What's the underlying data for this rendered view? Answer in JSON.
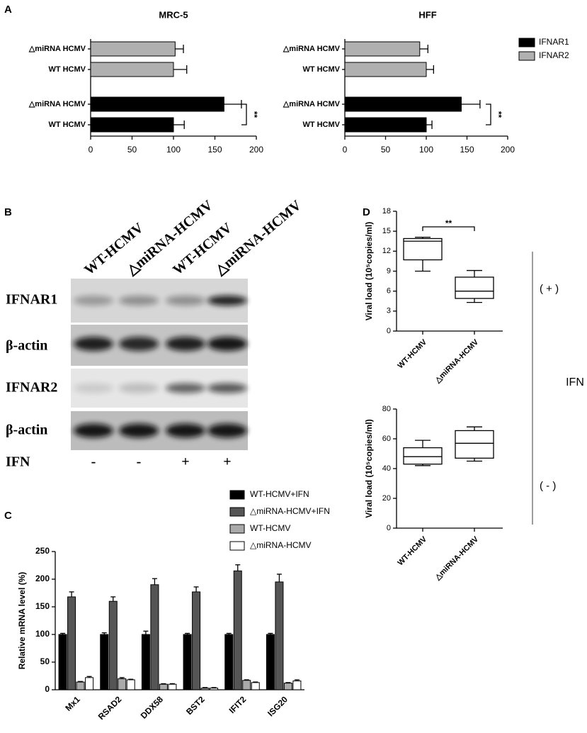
{
  "panels": [
    "A",
    "B",
    "C",
    "D"
  ],
  "blot": {
    "lanes": [
      "WT-HCMV",
      "△miRNA-HCMV",
      "WT-HCMV",
      "△miRNA-HCMV"
    ],
    "rows": [
      "IFNAR1",
      "β-actin",
      "IFNAR2",
      "β-actin"
    ],
    "treatment": "IFN",
    "treatment_signs": [
      "-",
      "-",
      "+",
      "+"
    ]
  },
  "chart_data": [
    {
      "type": "hbar",
      "title": "MRC-5",
      "categories": [
        "△miRNA HCMV",
        "WT HCMV",
        "△miRNA HCMV",
        "WT HCMV"
      ],
      "series": [
        {
          "color": "#000000",
          "values": [
            null,
            null,
            161,
            100
          ],
          "errors": [
            null,
            null,
            21,
            13
          ]
        },
        {
          "color": "#b0b0b0",
          "values": [
            102,
            100,
            null,
            null
          ],
          "errors": [
            10,
            16,
            null,
            null
          ]
        }
      ],
      "xlim": [
        0,
        200
      ],
      "xticks": [
        0,
        50,
        100,
        150,
        200
      ],
      "annotation": "**"
    },
    {
      "type": "hbar",
      "title": "HFF",
      "categories": [
        "△miRNA HCMV",
        "WT HCMV",
        "△miRNA HCMV",
        "WT HCMV"
      ],
      "series": [
        {
          "name": "IFNAR1",
          "color": "#000000",
          "values": [
            null,
            null,
            143,
            100
          ],
          "errors": [
            null,
            null,
            23,
            7
          ]
        },
        {
          "name": "IFNAR2",
          "color": "#b0b0b0",
          "values": [
            92,
            100,
            null,
            null
          ],
          "errors": [
            10,
            9,
            null,
            null
          ]
        }
      ],
      "xlim": [
        0,
        200
      ],
      "xticks": [
        0,
        50,
        100,
        150,
        200
      ],
      "annotation": "**"
    },
    {
      "type": "box",
      "y_label": "Viral load (10⁵copies/ml)",
      "categories": [
        "WT-HCMV",
        "△miRNA-HCMV"
      ],
      "boxes": [
        {
          "min": 9,
          "q1": 10.7,
          "median": 13.5,
          "q3": 13.9,
          "max": 14.1
        },
        {
          "min": 4.3,
          "q1": 4.9,
          "median": 6,
          "q3": 8.1,
          "max": 9.1
        }
      ],
      "ylim": [
        0,
        18
      ],
      "yticks": [
        0,
        3,
        6,
        9,
        12,
        15,
        18
      ],
      "annotation": "**",
      "side_label": "( + )",
      "group_label": "IFN"
    },
    {
      "type": "box",
      "y_label": "Viral load (10⁵copies/ml)",
      "categories": [
        "WT-HCMV",
        "△miRNA-HCMV"
      ],
      "boxes": [
        {
          "min": 42,
          "q1": 43,
          "median": 48,
          "q3": 54,
          "max": 59
        },
        {
          "min": 45,
          "q1": 47,
          "median": 57,
          "q3": 65.5,
          "max": 68
        }
      ],
      "ylim": [
        0,
        80
      ],
      "yticks": [
        0,
        20,
        40,
        60,
        80
      ],
      "side_label": "( - )"
    },
    {
      "type": "bar",
      "y_label": "Relative mRNA level (%)",
      "categories": [
        "Mx1",
        "RSAD2",
        "DDX58",
        "BST2",
        "IFIT2",
        "ISG20"
      ],
      "series": [
        {
          "name": "WT-HCMV+IFN",
          "color": "#000000",
          "values": [
            100,
            100,
            100,
            100,
            100,
            100
          ],
          "errors": [
            2,
            3,
            6,
            2,
            2,
            2
          ]
        },
        {
          "name": "△miRNA-HCMV+IFN",
          "color": "#555555",
          "values": [
            168,
            160,
            190,
            177,
            215,
            195
          ],
          "errors": [
            9,
            8,
            11,
            9,
            11,
            14
          ]
        },
        {
          "name": "WT-HCMV",
          "color": "#aaaaaa",
          "values": [
            14,
            20,
            10,
            3,
            17,
            12
          ],
          "errors": [
            1,
            2,
            1,
            1,
            1,
            1
          ]
        },
        {
          "name": "△miRNA-HCMV",
          "color": "#ffffff",
          "values": [
            22,
            18,
            10,
            3,
            13,
            16
          ],
          "errors": [
            2,
            1,
            1,
            1,
            1,
            2
          ]
        }
      ],
      "ylim": [
        0,
        250
      ],
      "yticks": [
        0,
        50,
        100,
        150,
        200,
        250
      ]
    }
  ]
}
